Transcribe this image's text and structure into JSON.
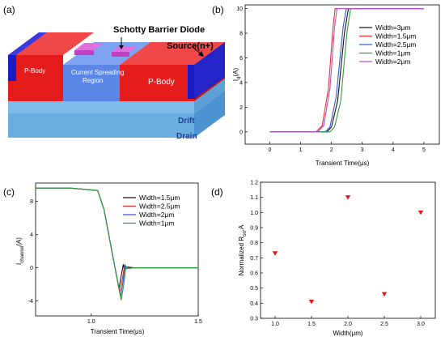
{
  "panels": {
    "a": {
      "label": "(a)",
      "schottky": "Schotty Barrier Diode",
      "source": "Source(n+)",
      "pbody_left": "P-Body",
      "pbody_right": "P-Body",
      "csr_line1": "Current Spreading",
      "csr_line2": "Region",
      "drift": "Drift",
      "drain": "Drain"
    },
    "b": {
      "label": "(b)"
    },
    "c": {
      "label": "(c)"
    },
    "d": {
      "label": "(d)"
    }
  },
  "chart_data": [
    {
      "panel": "b",
      "type": "line",
      "xlabel": "Transient Time(μs)",
      "ylabel": "I_d(A)",
      "ylabel_main": "I",
      "ylabel_sub": "d",
      "ylabel_tail": "(A)",
      "xlim": [
        -0.8,
        5.5
      ],
      "ylim": [
        -1,
        10.3
      ],
      "xticks": [
        "0",
        "1",
        "2",
        "3",
        "4",
        "5"
      ],
      "xtick_values": [
        0,
        1,
        2,
        3,
        4,
        5
      ],
      "yticks": [
        "0",
        "2",
        "4",
        "6",
        "8",
        "10"
      ],
      "ytick_values": [
        0,
        2,
        4,
        6,
        8,
        10
      ],
      "legend_position": "top-right",
      "series": [
        {
          "name": "Width=3μm",
          "color": "#111111",
          "x": [
            0,
            1.85,
            2.0,
            2.2,
            2.42,
            2.55,
            5
          ],
          "y": [
            0,
            0,
            0.4,
            2.5,
            8.0,
            10,
            10
          ]
        },
        {
          "name": "Width=1.5μm",
          "color": "#e8322b",
          "x": [
            0,
            1.5,
            1.7,
            1.9,
            2.05,
            2.12,
            5
          ],
          "y": [
            0,
            0,
            0.5,
            3.5,
            8.5,
            10,
            10
          ]
        },
        {
          "name": "Width=2.5μm",
          "color": "#3355dd",
          "x": [
            0,
            1.8,
            1.95,
            2.15,
            2.38,
            2.48,
            5
          ],
          "y": [
            0,
            0,
            0.4,
            2.8,
            8.5,
            10,
            10
          ]
        },
        {
          "name": "Width=1μm",
          "color": "#2e9e3b",
          "x": [
            0,
            1.95,
            2.1,
            2.3,
            2.5,
            2.62,
            5
          ],
          "y": [
            0,
            0,
            0.4,
            2.5,
            8.0,
            10,
            10
          ]
        },
        {
          "name": "Width=2μm",
          "color": "#b04fd0",
          "x": [
            0,
            1.55,
            1.75,
            1.95,
            2.1,
            2.18,
            5
          ],
          "y": [
            0,
            0,
            0.5,
            3.5,
            8.5,
            10,
            10
          ]
        }
      ]
    },
    {
      "panel": "c",
      "type": "line",
      "xlabel": "Transient Time(μs)",
      "ylabel": "I_channel(A)",
      "ylabel_main": "I",
      "ylabel_sub": "channel",
      "ylabel_tail": "(A)",
      "xlim": [
        0.74,
        1.5
      ],
      "ylim": [
        -5.8,
        10.2
      ],
      "xticks": [
        "1.0",
        "1.5"
      ],
      "xtick_values": [
        1.0,
        1.5
      ],
      "yticks": [
        "8",
        "4",
        "0",
        "-4"
      ],
      "ytick_values": [
        8,
        4,
        0,
        -4
      ],
      "legend_position": "top-right",
      "series": [
        {
          "name": "Width=1.5μm",
          "color": "#111111",
          "x": [
            0.74,
            0.9,
            1.03,
            1.06,
            1.1,
            1.13,
            1.14,
            1.15,
            1.155,
            1.16,
            1.2,
            1.5
          ],
          "y": [
            9.6,
            9.6,
            9.3,
            7.0,
            1.5,
            -2.5,
            -1.0,
            0.4,
            -0.3,
            0.1,
            0,
            0
          ]
        },
        {
          "name": "Width=2.5μm",
          "color": "#e8322b",
          "x": [
            0.74,
            0.9,
            1.03,
            1.06,
            1.1,
            1.133,
            1.145,
            1.155,
            1.16,
            1.2,
            1.5
          ],
          "y": [
            9.6,
            9.6,
            9.3,
            7.0,
            1.5,
            -3.0,
            -1.5,
            0.2,
            -0.1,
            0,
            0
          ]
        },
        {
          "name": "Width=2μm",
          "color": "#3355dd",
          "x": [
            0.74,
            0.9,
            1.03,
            1.06,
            1.1,
            1.137,
            1.15,
            1.158,
            1.165,
            1.2,
            1.5
          ],
          "y": [
            9.6,
            9.6,
            9.3,
            7.0,
            1.5,
            -3.5,
            -1.5,
            0.3,
            -0.1,
            0,
            0
          ]
        },
        {
          "name": "Width=1μm",
          "color": "#2e9e3b",
          "x": [
            0.74,
            0.9,
            1.03,
            1.06,
            1.1,
            1.14,
            1.152,
            1.162,
            1.17,
            1.2,
            1.5
          ],
          "y": [
            9.6,
            9.6,
            9.3,
            7.0,
            1.5,
            -3.9,
            -2.0,
            0.2,
            -0.1,
            0,
            0
          ]
        }
      ]
    },
    {
      "panel": "d",
      "type": "scatter",
      "xlabel": "Width(μm)",
      "ylabel": "Normalized R_on,A",
      "ylabel_main": "Normalized R",
      "ylabel_sub": "on",
      "ylabel_tail": ",A",
      "xlim": [
        0.8,
        3.2
      ],
      "ylim": [
        0.3,
        1.2
      ],
      "xticks": [
        "1.0",
        "1.5",
        "2.0",
        "2.5",
        "3.0"
      ],
      "xtick_values": [
        1.0,
        1.5,
        2.0,
        2.5,
        3.0
      ],
      "yticks": [
        "0.3",
        "0.4",
        "0.5",
        "0.6",
        "0.7",
        "0.8",
        "0.9",
        "1.0",
        "1.1",
        "1.2"
      ],
      "ytick_values": [
        0.3,
        0.4,
        0.5,
        0.6,
        0.7,
        0.8,
        0.9,
        1.0,
        1.1,
        1.2
      ],
      "marker_color": "#e01818",
      "x": [
        1.0,
        1.5,
        2.0,
        2.5,
        3.0
      ],
      "y": [
        0.73,
        0.41,
        1.1,
        0.46,
        1.0
      ]
    }
  ]
}
